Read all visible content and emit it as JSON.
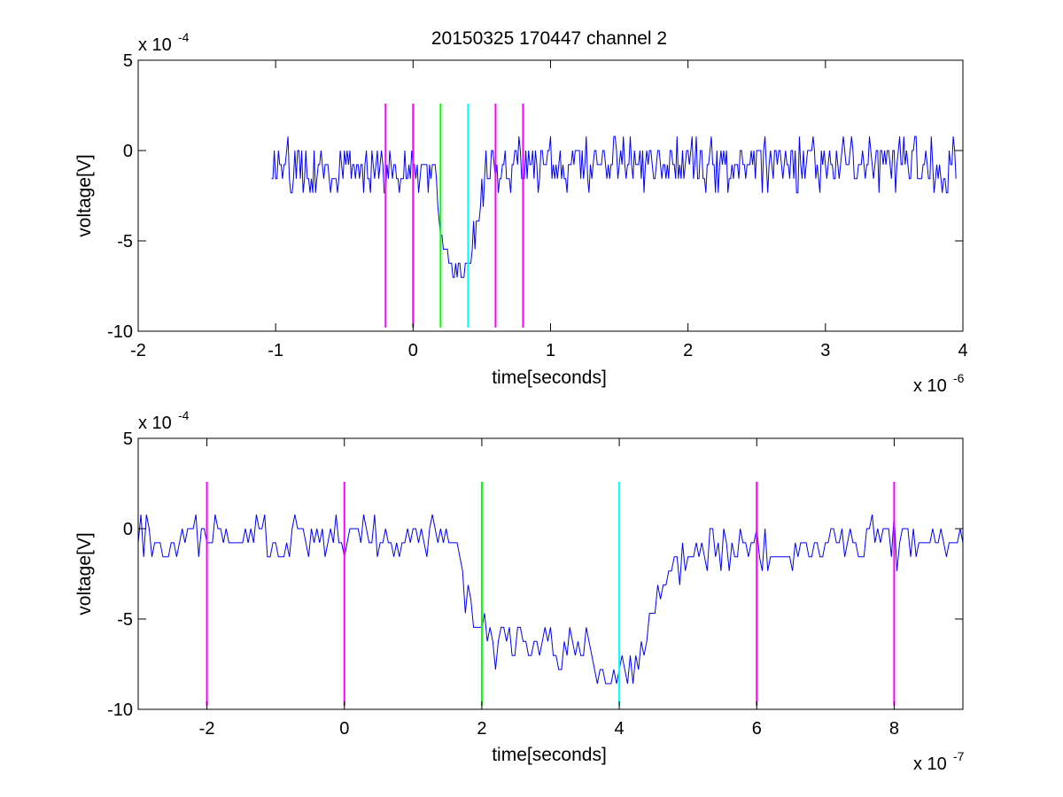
{
  "title": "20150325 170447 channel 2",
  "colors": {
    "signal": "#0000ff",
    "marker_magenta": "#ff00ff",
    "marker_green": "#00ff00",
    "marker_cyan": "#00ffff",
    "axes": "#000000",
    "background": "#ffffff"
  },
  "chart_data": [
    {
      "type": "line",
      "title": "20150325 170447 channel 2",
      "xlabel": "time[seconds]",
      "ylabel": "voltage[V]",
      "x_multiplier_label": "x 10",
      "x_multiplier_exp": "-6",
      "y_multiplier_label": "x 10",
      "y_multiplier_exp": "-4",
      "xlim": [
        -2,
        4
      ],
      "ylim": [
        -10,
        5
      ],
      "xticks": [
        "-2",
        "-1",
        "0",
        "1",
        "2",
        "3",
        "4"
      ],
      "yticks": [
        "5",
        "0",
        "-5",
        "-10"
      ],
      "grid": false,
      "series": [
        {
          "kind": "noisy_trace",
          "x_range": [
            -1.03,
            3.95
          ],
          "step": 0.01,
          "envelope": [
            [
              -1.03,
              -1
            ],
            [
              0.17,
              -1
            ],
            [
              0.19,
              -3
            ],
            [
              0.23,
              -5.8
            ],
            [
              0.3,
              -6.8
            ],
            [
              0.36,
              -7
            ],
            [
              0.44,
              -5
            ],
            [
              0.49,
              -2.5
            ],
            [
              0.53,
              -0.8
            ],
            [
              3.95,
              -0.8
            ]
          ],
          "noise": 1.4,
          "seed": 20150325
        }
      ],
      "markers": [
        {
          "x": -0.2,
          "color": "magenta",
          "y_range": [
            -9.8,
            2.6
          ]
        },
        {
          "x": 0.0,
          "color": "magenta",
          "y_range": [
            -9.8,
            2.6
          ]
        },
        {
          "x": 0.2,
          "color": "green",
          "y_range": [
            -9.8,
            2.6
          ]
        },
        {
          "x": 0.4,
          "color": "cyan",
          "y_range": [
            -9.8,
            2.6
          ]
        },
        {
          "x": 0.6,
          "color": "magenta",
          "y_range": [
            -9.8,
            2.6
          ]
        },
        {
          "x": 0.8,
          "color": "magenta",
          "y_range": [
            -9.8,
            2.6
          ]
        }
      ]
    },
    {
      "type": "line",
      "xlabel": "time[seconds]",
      "ylabel": "voltage[V]",
      "x_multiplier_label": "x 10",
      "x_multiplier_exp": "-7",
      "y_multiplier_label": "x 10",
      "y_multiplier_exp": "-4",
      "xlim": [
        -3,
        9
      ],
      "ylim": [
        -10,
        5
      ],
      "xticks": [
        "-2",
        "0",
        "2",
        "4",
        "6",
        "8"
      ],
      "xtick_values": [
        -2,
        0,
        2,
        4,
        6,
        8
      ],
      "yticks": [
        "5",
        "0",
        "-5",
        "-10"
      ],
      "grid": false,
      "series": [
        {
          "kind": "noisy_trace",
          "x_range": [
            -3,
            9
          ],
          "step": 0.04,
          "envelope": [
            [
              -3,
              -0.5
            ],
            [
              1.5,
              -0.5
            ],
            [
              1.7,
              -2
            ],
            [
              1.85,
              -5
            ],
            [
              2.2,
              -6.3
            ],
            [
              3.0,
              -7
            ],
            [
              3.6,
              -7.2
            ],
            [
              4.0,
              -8.3
            ],
            [
              4.3,
              -6.8
            ],
            [
              4.7,
              -2.5
            ],
            [
              5.0,
              -1.2
            ],
            [
              6.0,
              -1
            ],
            [
              9,
              -0.5
            ]
          ],
          "noise": 1.3,
          "seed": 170447
        }
      ],
      "markers": [
        {
          "x": -2,
          "color": "magenta",
          "y_range": [
            -9.8,
            2.6
          ]
        },
        {
          "x": 0,
          "color": "magenta",
          "y_range": [
            -9.8,
            2.6
          ]
        },
        {
          "x": 2,
          "color": "green",
          "y_range": [
            -9.8,
            2.6
          ]
        },
        {
          "x": 4,
          "color": "cyan",
          "y_range": [
            -9.8,
            2.6
          ]
        },
        {
          "x": 6,
          "color": "magenta",
          "y_range": [
            -9.8,
            2.6
          ]
        },
        {
          "x": 8,
          "color": "magenta",
          "y_range": [
            -9.8,
            2.6
          ]
        }
      ]
    }
  ]
}
